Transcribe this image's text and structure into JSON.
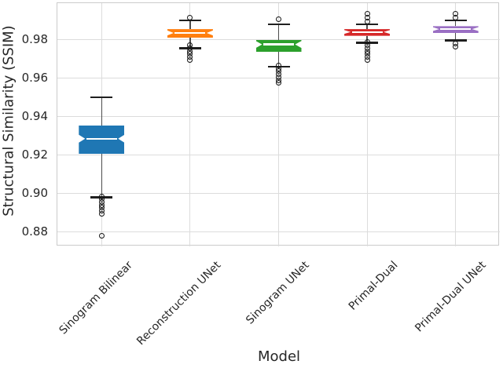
{
  "chart_data": {
    "type": "boxplot",
    "title": "",
    "xlabel": "Model",
    "ylabel": "Structural Similarity (SSIM)",
    "categories": [
      "Sinogram Bilinear",
      "Reconstruction UNet",
      "Sinogram UNet",
      "Primal-Dual",
      "Primal-Dual UNet"
    ],
    "ylim": [
      0.8725,
      0.999
    ],
    "yticks": [
      0.88,
      0.9,
      0.92,
      0.94,
      0.96,
      0.98
    ],
    "grid": true,
    "legend": "none",
    "notched": true,
    "median_line_color": "#ffffff",
    "outlier_marker": "open-circle",
    "series": [
      {
        "name": "Sinogram Bilinear",
        "color": "#1f77b4",
        "whisker_low": 0.898,
        "q1": 0.9205,
        "median": 0.9285,
        "q3": 0.9355,
        "whisker_high": 0.95,
        "outliers": [
          0.8985,
          0.897,
          0.8955,
          0.894,
          0.8925,
          0.891,
          0.8895,
          0.878
        ]
      },
      {
        "name": "Reconstruction UNet",
        "color": "#ff7f0e",
        "whisker_low": 0.9755,
        "q1": 0.981,
        "median": 0.9835,
        "q3": 0.9855,
        "whisker_high": 0.99,
        "outliers": [
          0.9915,
          0.977,
          0.9755,
          0.974,
          0.9725,
          0.971,
          0.9695
        ]
      },
      {
        "name": "Sinogram UNet",
        "color": "#2ca02c",
        "whisker_low": 0.966,
        "q1": 0.9735,
        "median": 0.9775,
        "q3": 0.98,
        "whisker_high": 0.988,
        "outliers": [
          0.9905,
          0.9665,
          0.965,
          0.9635,
          0.962,
          0.9605,
          0.959,
          0.9575
        ]
      },
      {
        "name": "Primal-Dual",
        "color": "#d62728",
        "whisker_low": 0.9785,
        "q1": 0.982,
        "median": 0.984,
        "q3": 0.9855,
        "whisker_high": 0.988,
        "outliers": [
          0.9935,
          0.9915,
          0.9895,
          0.979,
          0.977,
          0.9755,
          0.974,
          0.9725,
          0.971,
          0.9695
        ]
      },
      {
        "name": "Primal-Dual UNet",
        "color": "#9a6fc3",
        "whisker_low": 0.9795,
        "q1": 0.9835,
        "median": 0.9855,
        "q3": 0.987,
        "whisker_high": 0.99,
        "outliers": [
          0.9935,
          0.9915,
          0.978,
          0.9765
        ]
      }
    ]
  }
}
